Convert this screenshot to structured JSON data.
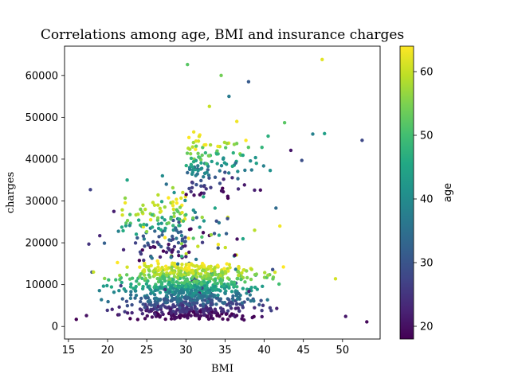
{
  "chart_data": {
    "type": "scatter",
    "title": "Correlations among age, BMI and insurance charges",
    "xlabel": "BMI",
    "ylabel": "charges",
    "xlim": [
      14.5,
      54.8
    ],
    "ylim": [
      -3000,
      67000
    ],
    "xticks": [
      "15",
      "20",
      "25",
      "30",
      "35",
      "40",
      "45",
      "50"
    ],
    "yticks": [
      "0",
      "10000",
      "20000",
      "30000",
      "40000",
      "50000",
      "60000"
    ],
    "colorbar": {
      "label": "age",
      "range": [
        18,
        64
      ],
      "ticks": [
        "20",
        "30",
        "40",
        "50",
        "60"
      ],
      "colormap": "viridis"
    },
    "grid": false,
    "generator": {
      "note_omitted": true
    },
    "points": [
      {
        "x": 16.0,
        "y": 1700,
        "age": 18
      },
      {
        "x": 17.3,
        "y": 2600,
        "age": 20
      },
      {
        "x": 17.8,
        "y": 32700,
        "age": 27
      },
      {
        "x": 18.0,
        "y": 13000,
        "age": 30
      },
      {
        "x": 19.0,
        "y": 21700,
        "age": 23
      },
      {
        "x": 20.8,
        "y": 27500,
        "age": 22
      },
      {
        "x": 22.5,
        "y": 35000,
        "age": 45
      },
      {
        "x": 24.5,
        "y": 27000,
        "age": 61
      },
      {
        "x": 25.5,
        "y": 25500,
        "age": 63
      },
      {
        "x": 26.0,
        "y": 29000,
        "age": 60
      },
      {
        "x": 27.0,
        "y": 36000,
        "age": 40
      },
      {
        "x": 27.5,
        "y": 34000,
        "age": 35
      },
      {
        "x": 28.5,
        "y": 32000,
        "age": 41
      },
      {
        "x": 30.2,
        "y": 62600,
        "age": 52
      },
      {
        "x": 31.0,
        "y": 46500,
        "age": 63
      },
      {
        "x": 32.5,
        "y": 41500,
        "age": 48
      },
      {
        "x": 33.0,
        "y": 52600,
        "age": 60
      },
      {
        "x": 34.5,
        "y": 60000,
        "age": 54
      },
      {
        "x": 35.5,
        "y": 55000,
        "age": 37
      },
      {
        "x": 36.5,
        "y": 49000,
        "age": 63
      },
      {
        "x": 38.0,
        "y": 58500,
        "age": 31
      },
      {
        "x": 39.0,
        "y": 39000,
        "age": 44
      },
      {
        "x": 40.5,
        "y": 45500,
        "age": 47
      },
      {
        "x": 41.5,
        "y": 28300,
        "age": 34
      },
      {
        "x": 42.0,
        "y": 24000,
        "age": 63
      },
      {
        "x": 42.6,
        "y": 48700,
        "age": 52
      },
      {
        "x": 43.4,
        "y": 42100,
        "age": 21
      },
      {
        "x": 44.8,
        "y": 39700,
        "age": 29
      },
      {
        "x": 46.2,
        "y": 46000,
        "age": 38
      },
      {
        "x": 47.4,
        "y": 63800,
        "age": 62
      },
      {
        "x": 47.7,
        "y": 46100,
        "age": 44
      },
      {
        "x": 49.1,
        "y": 11400,
        "age": 61
      },
      {
        "x": 50.4,
        "y": 2400,
        "age": 21
      },
      {
        "x": 52.5,
        "y": 44500,
        "age": 28
      },
      {
        "x": 53.1,
        "y": 1100,
        "age": 19
      }
    ]
  }
}
